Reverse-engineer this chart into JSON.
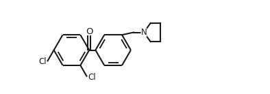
{
  "bg_color": "#ffffff",
  "line_color": "#1a1a1a",
  "line_width": 1.5,
  "font_size": 8.5,
  "fig_width": 3.94,
  "fig_height": 1.38,
  "dpi": 100,
  "xlim": [
    -1.0,
    11.5
  ],
  "ylim": [
    -0.5,
    4.0
  ]
}
